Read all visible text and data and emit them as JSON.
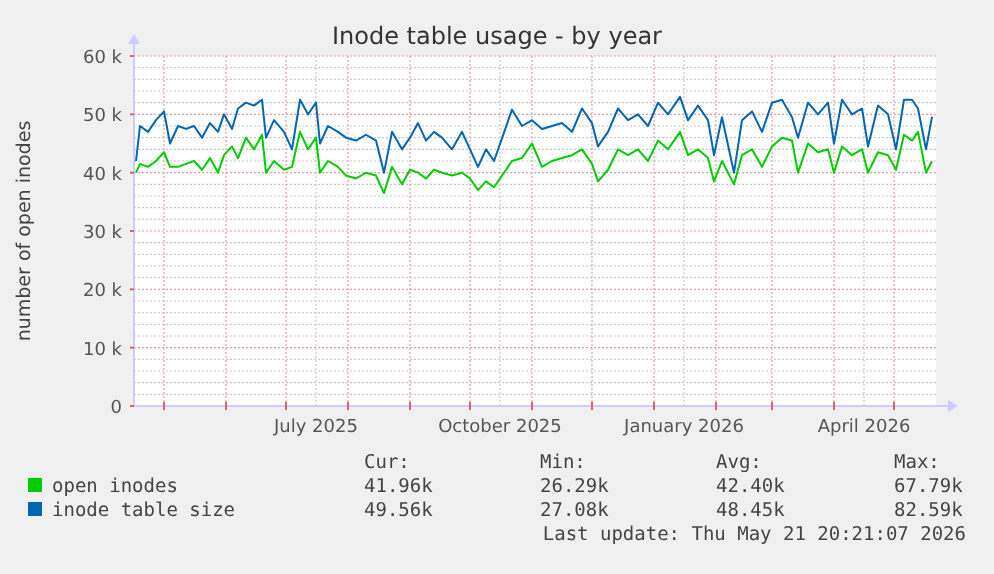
{
  "chart_data": {
    "type": "line",
    "title": "Inode table usage - by year",
    "ylabel": "number of open inodes",
    "xlim": [
      "2025-04-16",
      "2026-05-22"
    ],
    "ylim": [
      0,
      60000
    ],
    "yticks": [
      {
        "value": 0,
        "label": "0"
      },
      {
        "value": 10000,
        "label": "10 k"
      },
      {
        "value": 20000,
        "label": "20 k"
      },
      {
        "value": 30000,
        "label": "30 k"
      },
      {
        "value": 40000,
        "label": "40 k"
      },
      {
        "value": 50000,
        "label": "50 k"
      },
      {
        "value": 60000,
        "label": "60 k"
      }
    ],
    "xticks": [
      {
        "value": "2025-05-01",
        "label": null
      },
      {
        "value": "2025-06-01",
        "label": null
      },
      {
        "value": "2025-07-01",
        "label": null
      },
      {
        "value": "2025-07-16",
        "label": "July 2025"
      },
      {
        "value": "2025-08-01",
        "label": null
      },
      {
        "value": "2025-09-01",
        "label": null
      },
      {
        "value": "2025-10-01",
        "label": null
      },
      {
        "value": "2025-10-16",
        "label": "October 2025"
      },
      {
        "value": "2025-11-01",
        "label": null
      },
      {
        "value": "2025-12-01",
        "label": null
      },
      {
        "value": "2026-01-01",
        "label": null
      },
      {
        "value": "2026-01-16",
        "label": "January 2026"
      },
      {
        "value": "2026-02-01",
        "label": null
      },
      {
        "value": "2026-03-01",
        "label": null
      },
      {
        "value": "2026-04-01",
        "label": null
      },
      {
        "value": "2026-04-16",
        "label": "April 2026"
      },
      {
        "value": "2026-05-01",
        "label": null
      }
    ],
    "grid": true,
    "legend": "bottom",
    "line_style": "solid",
    "x": [
      "2025-04-17",
      "2025-04-19",
      "2025-04-23",
      "2025-04-27",
      "2025-05-01",
      "2025-05-04",
      "2025-05-08",
      "2025-05-12",
      "2025-05-16",
      "2025-05-20",
      "2025-05-24",
      "2025-05-28",
      "2025-05-31",
      "2025-06-04",
      "2025-06-07",
      "2025-06-11",
      "2025-06-15",
      "2025-06-19",
      "2025-06-21",
      "2025-06-25",
      "2025-06-30",
      "2025-07-04",
      "2025-07-08",
      "2025-07-12",
      "2025-07-16",
      "2025-07-18",
      "2025-07-22",
      "2025-07-27",
      "2025-07-31",
      "2025-08-05",
      "2025-08-10",
      "2025-08-15",
      "2025-08-19",
      "2025-08-23",
      "2025-08-28",
      "2025-09-01",
      "2025-09-05",
      "2025-09-09",
      "2025-09-13",
      "2025-09-17",
      "2025-09-22",
      "2025-09-27",
      "2025-10-01",
      "2025-10-05",
      "2025-10-09",
      "2025-10-13",
      "2025-10-22",
      "2025-10-27",
      "2025-11-01",
      "2025-11-06",
      "2025-11-11",
      "2025-11-16",
      "2025-11-21",
      "2025-11-26",
      "2025-12-01",
      "2025-12-04",
      "2025-12-09",
      "2025-12-14",
      "2025-12-19",
      "2025-12-24",
      "2025-12-29",
      "2026-01-03",
      "2026-01-08",
      "2026-01-14",
      "2026-01-18",
      "2026-01-23",
      "2026-01-28",
      "2026-01-31",
      "2026-02-04",
      "2026-02-10",
      "2026-02-14",
      "2026-02-19",
      "2026-02-24",
      "2026-03-01",
      "2026-03-06",
      "2026-03-11",
      "2026-03-14",
      "2026-03-19",
      "2026-03-24",
      "2026-03-29",
      "2026-04-01",
      "2026-04-05",
      "2026-04-10",
      "2026-04-15",
      "2026-04-18",
      "2026-04-23",
      "2026-04-28",
      "2026-05-02",
      "2026-05-06",
      "2026-05-10",
      "2026-05-13",
      "2026-05-17",
      "2026-05-20"
    ],
    "series": [
      {
        "name": "open inodes",
        "color": "#00cc00",
        "values": [
          40000,
          41500,
          41000,
          42000,
          43500,
          41000,
          41000,
          41500,
          42000,
          40500,
          42500,
          40000,
          43000,
          44500,
          42500,
          46000,
          44000,
          46500,
          40000,
          42000,
          40500,
          41000,
          47000,
          44000,
          46000,
          40000,
          42000,
          41000,
          39500,
          39000,
          40000,
          39500,
          36500,
          41000,
          38000,
          40500,
          40000,
          39000,
          40500,
          40000,
          39500,
          40000,
          39000,
          37000,
          38500,
          37500,
          42000,
          42500,
          45000,
          41000,
          42000,
          42500,
          43000,
          44000,
          41500,
          38500,
          40500,
          44000,
          43000,
          44000,
          42000,
          45500,
          44000,
          47000,
          43000,
          44000,
          42500,
          38500,
          42000,
          38000,
          43000,
          44000,
          41000,
          44500,
          46000,
          45500,
          40000,
          45000,
          43500,
          44000,
          40000,
          44500,
          43000,
          44000,
          40000,
          43500,
          43000,
          40500,
          46500,
          45500,
          47000,
          40000,
          41960
        ]
      },
      {
        "name": "inode table size",
        "color": "#0066b3",
        "values": [
          42000,
          48000,
          47000,
          49000,
          50500,
          45000,
          48000,
          47500,
          48000,
          46000,
          48500,
          47000,
          50000,
          47500,
          51000,
          52000,
          51500,
          52500,
          46000,
          49000,
          47000,
          44000,
          52500,
          50000,
          52000,
          45000,
          48000,
          47000,
          46000,
          45500,
          46500,
          45500,
          40000,
          47000,
          44000,
          46000,
          48500,
          45500,
          47000,
          46000,
          44000,
          47000,
          44000,
          41000,
          44000,
          42000,
          50800,
          48000,
          49000,
          47500,
          48000,
          48500,
          47000,
          51000,
          48500,
          44500,
          47000,
          51000,
          49000,
          50000,
          48000,
          52000,
          50000,
          53000,
          49000,
          51500,
          49000,
          43000,
          49500,
          40000,
          49000,
          50500,
          47000,
          52000,
          52500,
          49500,
          46000,
          52000,
          50000,
          52000,
          45000,
          52500,
          50000,
          51000,
          44500,
          51500,
          50000,
          44000,
          52500,
          52500,
          51000,
          44000,
          49560
        ]
      }
    ],
    "annotations": [
      "Cur:",
      "Min:",
      "Avg:",
      "Max:",
      "41.96k",
      "26.29k",
      "42.40k",
      "67.79k",
      "49.56k",
      "27.08k",
      "48.45k",
      "82.59k",
      "Last update: Thu May 21 20:21:07 2026"
    ]
  }
}
